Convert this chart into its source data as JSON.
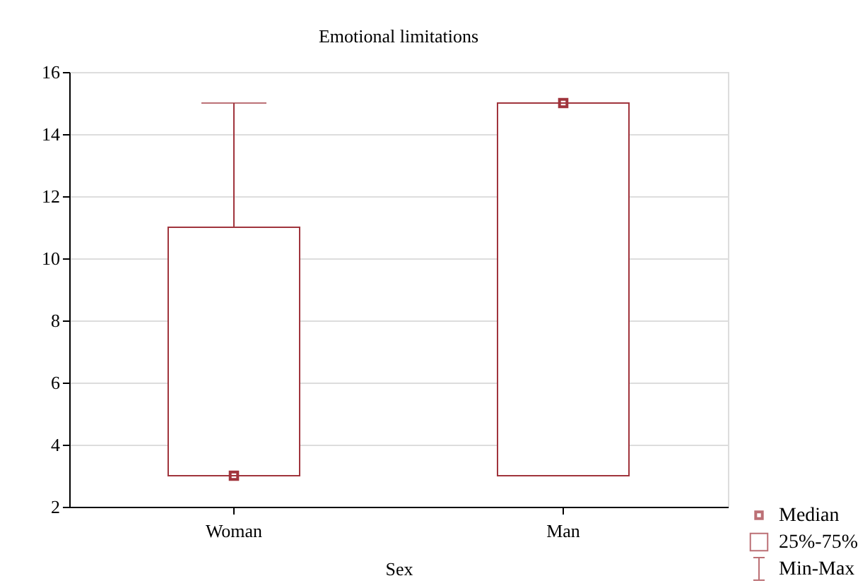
{
  "chart_data": {
    "type": "box",
    "title": "Emotional limitations",
    "xlabel": "Sex",
    "categories": [
      "Woman",
      "Man"
    ],
    "series": [
      {
        "color": "#a0343c",
        "boxes": [
          {
            "low": 3,
            "q1": 3,
            "median": 3,
            "q3": 11,
            "high": 15
          },
          {
            "low": 3,
            "q1": 3,
            "median": 15,
            "q3": 15,
            "high": 15
          }
        ]
      }
    ],
    "ylim": [
      2,
      16
    ],
    "yticks": [
      2,
      4,
      6,
      8,
      10,
      12,
      14,
      16
    ],
    "grid": "y",
    "annotations": [
      "Median",
      "25%-75%",
      "Min-Max"
    ]
  }
}
